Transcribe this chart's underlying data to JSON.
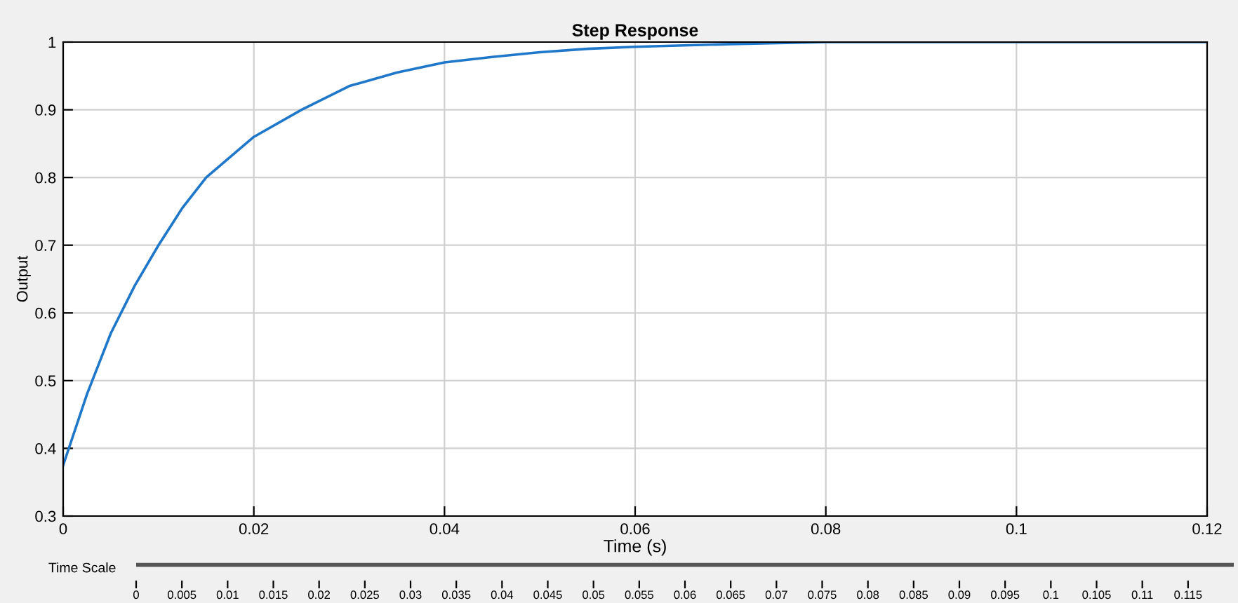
{
  "chart_data": {
    "type": "line",
    "title": "Step Response",
    "xlabel": "Time (s)",
    "ylabel": "Output",
    "x2label": "Time Scale",
    "x": [
      0,
      0.0025,
      0.005,
      0.0075,
      0.01,
      0.0125,
      0.015,
      0.0175,
      0.02,
      0.025,
      0.03,
      0.035,
      0.04,
      0.045,
      0.05,
      0.055,
      0.06,
      0.07,
      0.08,
      0.1,
      0.12
    ],
    "series": [
      {
        "color": "#1f77c9",
        "values": [
          0.375,
          0.48,
          0.57,
          0.64,
          0.7,
          0.755,
          0.8,
          0.83,
          0.86,
          0.9,
          0.935,
          0.955,
          0.97,
          0.978,
          0.985,
          0.99,
          0.993,
          0.997,
          1.0,
          1.0,
          1.0
        ]
      }
    ],
    "xlim": [
      0,
      0.12
    ],
    "ylim": [
      0.3,
      1
    ],
    "xticks": [
      0,
      0.02,
      0.04,
      0.06,
      0.08,
      0.1,
      0.12
    ],
    "yticks": [
      0.3,
      0.4,
      0.5,
      0.6,
      0.7,
      0.8,
      0.9,
      1
    ],
    "x2lim": [
      0,
      0.12
    ],
    "x2ticks": [
      0,
      0.005,
      0.01,
      0.015,
      0.02,
      0.025,
      0.03,
      0.035,
      0.04,
      0.045,
      0.05,
      0.055,
      0.06,
      0.065,
      0.07,
      0.075,
      0.08,
      0.085,
      0.09,
      0.095,
      0.1,
      0.105,
      0.11,
      0.115
    ],
    "grid": true,
    "line_style": "solid",
    "marker": "none"
  }
}
